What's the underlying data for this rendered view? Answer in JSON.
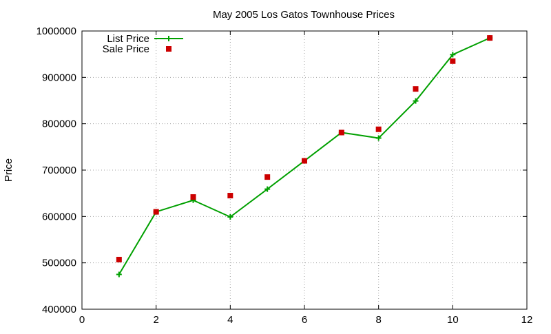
{
  "chart_data": {
    "type": "line",
    "title": "May 2005 Los Gatos Townhouse Prices",
    "xlabel": "",
    "ylabel": "Price",
    "xlim": [
      0,
      12
    ],
    "ylim": [
      400000,
      1000000
    ],
    "x_ticks": [
      0,
      2,
      4,
      6,
      8,
      10,
      12
    ],
    "y_ticks": [
      400000,
      500000,
      600000,
      700000,
      800000,
      900000,
      1000000
    ],
    "x_tick_labels": [
      "0",
      "2",
      "4",
      "6",
      "8",
      "10",
      "12"
    ],
    "y_tick_labels": [
      "400000",
      "500000",
      "600000",
      "700000",
      "800000",
      "900000",
      "1000000"
    ],
    "grid": true,
    "legend_position": "top-left",
    "series": [
      {
        "name": "List Price",
        "style": "line-with-plus-markers",
        "color": "#00a000",
        "x": [
          1,
          2,
          3,
          4,
          5,
          6,
          7,
          8,
          9,
          10,
          11
        ],
        "y": [
          475000,
          610000,
          635000,
          599000,
          659000,
          720000,
          781000,
          769000,
          849000,
          949000,
          985000
        ]
      },
      {
        "name": "Sale Price",
        "style": "square-markers",
        "color": "#cc0000",
        "x": [
          1,
          2,
          3,
          4,
          5,
          6,
          7,
          8,
          9,
          10,
          11
        ],
        "y": [
          507000,
          610000,
          642000,
          645000,
          685000,
          720000,
          781000,
          788000,
          875000,
          935000,
          985000
        ]
      }
    ]
  }
}
